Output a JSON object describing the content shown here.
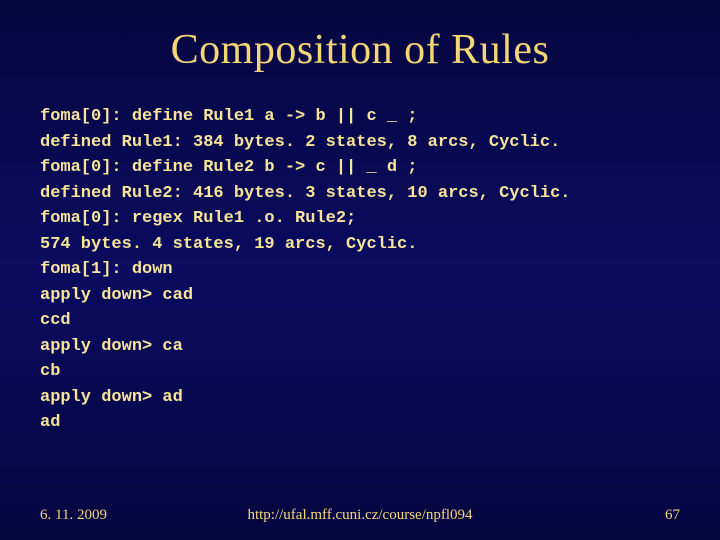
{
  "title": "Composition of Rules",
  "code_lines": [
    "foma[0]: define Rule1 a -> b || c _ ;",
    "defined Rule1: 384 bytes. 2 states, 8 arcs, Cyclic.",
    "foma[0]: define Rule2 b -> c || _ d ;",
    "defined Rule2: 416 bytes. 3 states, 10 arcs, Cyclic.",
    "foma[0]: regex Rule1 .o. Rule2;",
    "574 bytes. 4 states, 19 arcs, Cyclic.",
    "foma[1]: down",
    "apply down> cad",
    "ccd",
    "apply down> ca",
    "cb",
    "apply down> ad",
    "ad"
  ],
  "footer": {
    "date": "6. 11. 2009",
    "url": "http://ufal.mff.cuni.cz/course/npfl094",
    "page": "67"
  },
  "colors": {
    "background_top": "#060640",
    "background_mid": "#0b0b60",
    "text": "#f7e499",
    "title": "#f5d676"
  }
}
